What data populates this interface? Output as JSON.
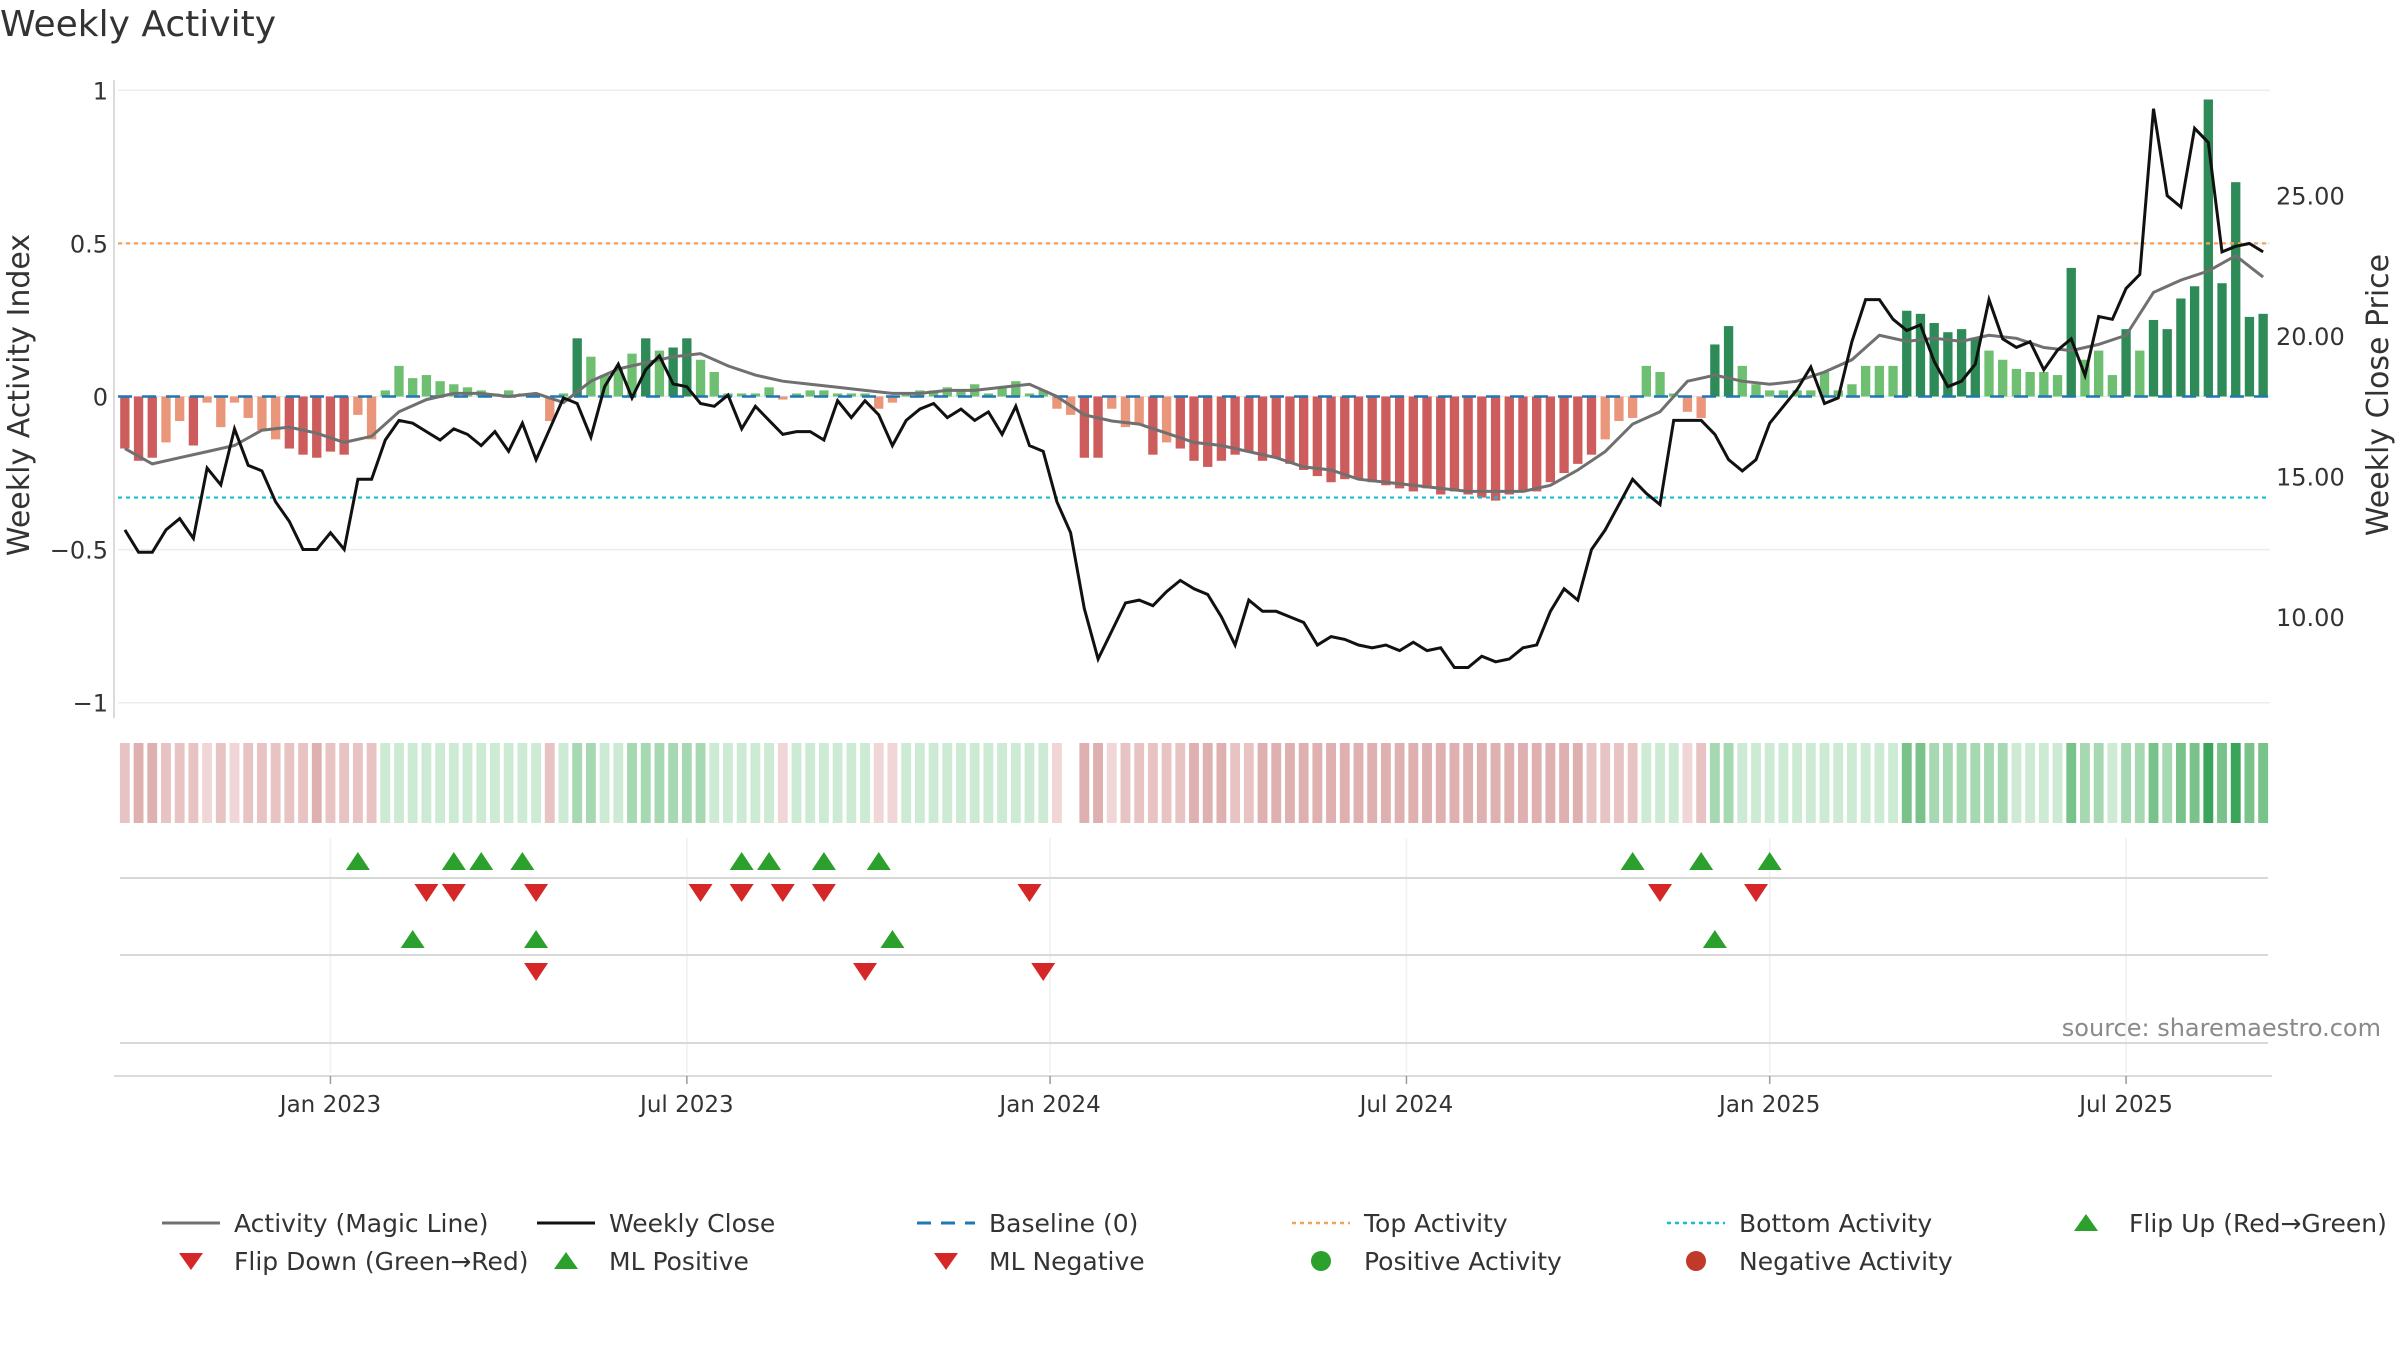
{
  "title": "Weekly Activity",
  "source": "source: sharemaestro.com",
  "chart_data": {
    "type": "bar+line",
    "title": "Weekly Activity",
    "ylabel_left": "Weekly Activity Index",
    "ylabel_right": "Weekly Close Price",
    "ylim_left": [
      -1.05,
      1.05
    ],
    "ylim_right": [
      6.4,
      29.3
    ],
    "left_ticks": [
      {
        "v": 1,
        "t": "1"
      },
      {
        "v": 0.5,
        "t": "0.5"
      },
      {
        "v": 0,
        "t": "0"
      },
      {
        "v": -0.5,
        "t": "−0.5"
      },
      {
        "v": -1,
        "t": "−1"
      }
    ],
    "right_ticks": [
      {
        "v": 25,
        "t": "25.00"
      },
      {
        "v": 20,
        "t": "20.00"
      },
      {
        "v": 15,
        "t": "15.00"
      },
      {
        "v": 10,
        "t": "10.00"
      }
    ],
    "x_ticks": [
      "Jan 2023",
      "Jul 2023",
      "Jan 2024",
      "Jul 2024",
      "Jan 2025",
      "Jul 2025"
    ],
    "x_tick_weeks": [
      15,
      41,
      67.5,
      93.5,
      120,
      146
    ],
    "n_weeks": 157,
    "top_activity": 0.5,
    "bottom_activity": -0.33,
    "activity": [
      -0.17,
      -0.21,
      -0.2,
      -0.15,
      -0.08,
      -0.16,
      -0.02,
      -0.1,
      -0.02,
      -0.07,
      -0.11,
      -0.14,
      -0.17,
      -0.19,
      -0.2,
      -0.18,
      -0.19,
      -0.06,
      -0.14,
      0.02,
      0.1,
      0.06,
      0.07,
      0.05,
      0.04,
      0.03,
      0.02,
      0.01,
      0.02,
      0.01,
      0.01,
      -0.08,
      0.01,
      0.19,
      0.13,
      0.07,
      0.09,
      0.14,
      0.19,
      0.15,
      0.16,
      0.19,
      0.12,
      0.08,
      0.01,
      0.01,
      0.01,
      0.03,
      -0.01,
      0.01,
      0.02,
      0.02,
      0.01,
      0.01,
      0.01,
      -0.04,
      -0.02,
      0.01,
      0.02,
      0.02,
      0.03,
      0.02,
      0.04,
      0.01,
      0.03,
      0.05,
      0.01,
      0.02,
      -0.04,
      -0.06,
      -0.2,
      -0.2,
      -0.04,
      -0.1,
      -0.09,
      -0.19,
      -0.15,
      -0.17,
      -0.21,
      -0.23,
      -0.21,
      -0.19,
      -0.18,
      -0.21,
      -0.2,
      -0.22,
      -0.24,
      -0.26,
      -0.28,
      -0.27,
      -0.27,
      -0.28,
      -0.29,
      -0.3,
      -0.31,
      -0.3,
      -0.32,
      -0.31,
      -0.32,
      -0.33,
      -0.34,
      -0.32,
      -0.31,
      -0.31,
      -0.28,
      -0.25,
      -0.22,
      -0.19,
      -0.14,
      -0.08,
      -0.07,
      0.1,
      0.08,
      0.01,
      -0.05,
      -0.07,
      0.17,
      0.23,
      0.1,
      0.04,
      0.02,
      0.02,
      0.02,
      0.02,
      0.08,
      0.02,
      0.04,
      0.1,
      0.1,
      0.1,
      0.28,
      0.27,
      0.24,
      0.21,
      0.22,
      0.19,
      0.15,
      0.12,
      0.09,
      0.08,
      0.08,
      0.07,
      0.42,
      0.12,
      0.15,
      0.07,
      0.22,
      0.15,
      0.25,
      0.22,
      0.32,
      0.36,
      0.97,
      0.37,
      0.7,
      0.26,
      0.27
    ],
    "flip_up": [
      17,
      24,
      26,
      29,
      45,
      47,
      51,
      55,
      110,
      115,
      120
    ],
    "flip_down": [
      22,
      24,
      30,
      42,
      45,
      48,
      51,
      66,
      112,
      119
    ],
    "ml_positive": [
      21,
      30,
      56,
      116
    ],
    "ml_negative": [
      30,
      54,
      67
    ],
    "price_xy": [
      [
        0,
        13.1
      ],
      [
        1,
        12.3
      ],
      [
        2,
        12.3
      ],
      [
        3,
        13.1
      ],
      [
        4,
        13.5
      ],
      [
        5,
        12.8
      ],
      [
        6,
        15.3
      ],
      [
        7,
        14.7
      ],
      [
        8,
        16.7
      ],
      [
        9,
        15.4
      ],
      [
        10,
        15.2
      ],
      [
        11,
        14.1
      ],
      [
        12,
        13.4
      ],
      [
        13,
        12.4
      ],
      [
        14,
        12.4
      ],
      [
        15,
        13.0
      ],
      [
        16,
        12.4
      ],
      [
        17,
        14.9
      ],
      [
        18,
        14.9
      ],
      [
        19,
        16.3
      ],
      [
        20,
        17.0
      ],
      [
        21,
        16.9
      ],
      [
        22,
        16.6
      ],
      [
        23,
        16.3
      ],
      [
        24,
        16.7
      ],
      [
        25,
        16.5
      ],
      [
        26,
        16.1
      ],
      [
        27,
        16.6
      ],
      [
        28,
        15.9
      ],
      [
        29,
        16.9
      ],
      [
        30,
        15.6
      ],
      [
        31,
        16.7
      ],
      [
        32,
        17.8
      ],
      [
        33,
        17.6
      ],
      [
        34,
        16.4
      ],
      [
        35,
        18.2
      ],
      [
        36,
        19.0
      ],
      [
        37,
        17.8
      ],
      [
        38,
        18.8
      ],
      [
        39,
        19.3
      ],
      [
        40,
        18.3
      ],
      [
        41,
        18.2
      ],
      [
        42,
        17.6
      ],
      [
        43,
        17.5
      ],
      [
        44,
        17.9
      ],
      [
        45,
        16.7
      ],
      [
        46,
        17.5
      ],
      [
        47,
        17.0
      ],
      [
        48,
        16.5
      ],
      [
        49,
        16.6
      ],
      [
        50,
        16.6
      ],
      [
        51,
        16.3
      ],
      [
        52,
        17.7
      ],
      [
        53,
        17.1
      ],
      [
        54,
        17.7
      ],
      [
        55,
        17.2
      ],
      [
        56,
        16.1
      ],
      [
        57,
        17.0
      ],
      [
        58,
        17.4
      ],
      [
        59,
        17.6
      ],
      [
        60,
        17.1
      ],
      [
        61,
        17.4
      ],
      [
        62,
        17.0
      ],
      [
        63,
        17.3
      ],
      [
        64,
        16.5
      ],
      [
        65,
        17.5
      ],
      [
        66,
        16.1
      ],
      [
        67,
        15.9
      ],
      [
        68,
        14.1
      ],
      [
        69,
        13.0
      ],
      [
        70,
        10.3
      ],
      [
        71,
        8.5
      ],
      [
        72,
        9.5
      ],
      [
        73,
        10.5
      ],
      [
        74,
        10.6
      ],
      [
        75,
        10.4
      ],
      [
        76,
        10.9
      ],
      [
        77,
        11.3
      ],
      [
        78,
        11.0
      ],
      [
        79,
        10.8
      ],
      [
        80,
        10.0
      ],
      [
        81,
        9.0
      ],
      [
        82,
        10.6
      ],
      [
        83,
        10.2
      ],
      [
        84,
        10.2
      ],
      [
        85,
        10.0
      ],
      [
        86,
        9.8
      ],
      [
        87,
        9.0
      ],
      [
        88,
        9.3
      ],
      [
        89,
        9.2
      ],
      [
        90,
        9.0
      ],
      [
        91,
        8.9
      ],
      [
        92,
        9.0
      ],
      [
        93,
        8.8
      ],
      [
        94,
        9.1
      ],
      [
        95,
        8.8
      ],
      [
        96,
        8.9
      ],
      [
        97,
        8.2
      ],
      [
        98,
        8.2
      ],
      [
        99,
        8.6
      ],
      [
        100,
        8.4
      ],
      [
        101,
        8.5
      ],
      [
        102,
        8.9
      ],
      [
        103,
        9.0
      ],
      [
        104,
        10.2
      ],
      [
        105,
        11.0
      ],
      [
        106,
        10.6
      ],
      [
        107,
        12.4
      ],
      [
        108,
        13.1
      ],
      [
        109,
        14.0
      ],
      [
        110,
        14.9
      ],
      [
        111,
        14.4
      ],
      [
        112,
        14.0
      ],
      [
        113,
        17.0
      ],
      [
        114,
        17.0
      ],
      [
        115,
        17.0
      ],
      [
        116,
        16.5
      ],
      [
        117,
        15.6
      ],
      [
        118,
        15.2
      ],
      [
        119,
        15.6
      ],
      [
        120,
        16.9
      ],
      [
        121,
        17.5
      ],
      [
        122,
        18.1
      ],
      [
        123,
        18.9
      ],
      [
        124,
        17.6
      ],
      [
        125,
        17.8
      ],
      [
        126,
        19.8
      ],
      [
        127,
        21.3
      ],
      [
        128,
        21.3
      ],
      [
        129,
        20.6
      ],
      [
        130,
        20.2
      ],
      [
        131,
        20.4
      ],
      [
        132,
        19.1
      ],
      [
        133,
        18.2
      ],
      [
        134,
        18.4
      ],
      [
        135,
        19.0
      ],
      [
        136,
        21.3
      ],
      [
        137,
        19.9
      ],
      [
        138,
        19.6
      ],
      [
        139,
        19.8
      ],
      [
        140,
        18.8
      ],
      [
        141,
        19.5
      ],
      [
        142,
        19.9
      ],
      [
        143,
        18.6
      ],
      [
        144,
        20.7
      ],
      [
        145,
        20.6
      ],
      [
        146,
        21.7
      ],
      [
        147,
        22.2
      ],
      [
        148,
        28.1
      ],
      [
        149,
        25.0
      ],
      [
        150,
        24.6
      ],
      [
        151,
        27.4
      ],
      [
        152,
        26.9
      ],
      [
        153,
        23.0
      ],
      [
        154,
        23.2
      ],
      [
        155,
        23.3
      ],
      [
        156,
        23.0
      ]
    ],
    "magic_line_xy": [
      [
        0,
        -0.17
      ],
      [
        2,
        -0.22
      ],
      [
        4,
        -0.2
      ],
      [
        6,
        -0.18
      ],
      [
        8,
        -0.16
      ],
      [
        10,
        -0.11
      ],
      [
        12,
        -0.1
      ],
      [
        14,
        -0.12
      ],
      [
        16,
        -0.15
      ],
      [
        18,
        -0.13
      ],
      [
        20,
        -0.05
      ],
      [
        22,
        -0.01
      ],
      [
        24,
        0.01
      ],
      [
        26,
        0.01
      ],
      [
        28,
        0.0
      ],
      [
        30,
        0.01
      ],
      [
        32,
        -0.02
      ],
      [
        34,
        0.05
      ],
      [
        36,
        0.09
      ],
      [
        38,
        0.11
      ],
      [
        40,
        0.13
      ],
      [
        42,
        0.14
      ],
      [
        44,
        0.1
      ],
      [
        46,
        0.07
      ],
      [
        48,
        0.05
      ],
      [
        50,
        0.04
      ],
      [
        52,
        0.03
      ],
      [
        54,
        0.02
      ],
      [
        56,
        0.01
      ],
      [
        58,
        0.01
      ],
      [
        60,
        0.02
      ],
      [
        62,
        0.02
      ],
      [
        64,
        0.03
      ],
      [
        66,
        0.04
      ],
      [
        68,
        0.0
      ],
      [
        70,
        -0.06
      ],
      [
        72,
        -0.08
      ],
      [
        74,
        -0.09
      ],
      [
        76,
        -0.12
      ],
      [
        78,
        -0.15
      ],
      [
        80,
        -0.16
      ],
      [
        82,
        -0.18
      ],
      [
        84,
        -0.2
      ],
      [
        86,
        -0.23
      ],
      [
        88,
        -0.24
      ],
      [
        90,
        -0.27
      ],
      [
        92,
        -0.28
      ],
      [
        94,
        -0.29
      ],
      [
        96,
        -0.3
      ],
      [
        98,
        -0.31
      ],
      [
        100,
        -0.31
      ],
      [
        102,
        -0.31
      ],
      [
        104,
        -0.29
      ],
      [
        106,
        -0.24
      ],
      [
        108,
        -0.18
      ],
      [
        110,
        -0.09
      ],
      [
        112,
        -0.05
      ],
      [
        114,
        0.05
      ],
      [
        116,
        0.07
      ],
      [
        118,
        0.05
      ],
      [
        120,
        0.04
      ],
      [
        122,
        0.05
      ],
      [
        124,
        0.08
      ],
      [
        126,
        0.12
      ],
      [
        128,
        0.2
      ],
      [
        130,
        0.18
      ],
      [
        132,
        0.19
      ],
      [
        134,
        0.18
      ],
      [
        136,
        0.2
      ],
      [
        138,
        0.19
      ],
      [
        140,
        0.16
      ],
      [
        142,
        0.15
      ],
      [
        144,
        0.17
      ],
      [
        146,
        0.2
      ],
      [
        148,
        0.34
      ],
      [
        150,
        0.38
      ],
      [
        152,
        0.41
      ],
      [
        154,
        0.46
      ],
      [
        156,
        0.39
      ]
    ]
  },
  "legend": [
    {
      "label": "Activity (Magic Line)",
      "symbol": "line",
      "color": "#707070"
    },
    {
      "label": "Weekly Close",
      "symbol": "line",
      "color": "#111111"
    },
    {
      "label": "Baseline (0)",
      "symbol": "dash",
      "color": "#1f77b4"
    },
    {
      "label": "Top Activity",
      "symbol": "dot",
      "color": "#f0a35e"
    },
    {
      "label": "Bottom Activity",
      "symbol": "dot",
      "color": "#17becf"
    },
    {
      "label": "Flip Up (Red→Green)",
      "symbol": "tri-up",
      "color": "#2ca02c"
    },
    {
      "label": "Flip Down (Green→Red)",
      "symbol": "tri-down",
      "color": "#d62728"
    },
    {
      "label": "ML Positive",
      "symbol": "tri-up",
      "color": "#2ca02c"
    },
    {
      "label": "ML Negative",
      "symbol": "tri-down",
      "color": "#d62728"
    },
    {
      "label": "Positive Activity",
      "symbol": "circle",
      "color": "#2ca02c"
    },
    {
      "label": "Negative Activity",
      "symbol": "circle",
      "color": "#c0392b"
    }
  ]
}
